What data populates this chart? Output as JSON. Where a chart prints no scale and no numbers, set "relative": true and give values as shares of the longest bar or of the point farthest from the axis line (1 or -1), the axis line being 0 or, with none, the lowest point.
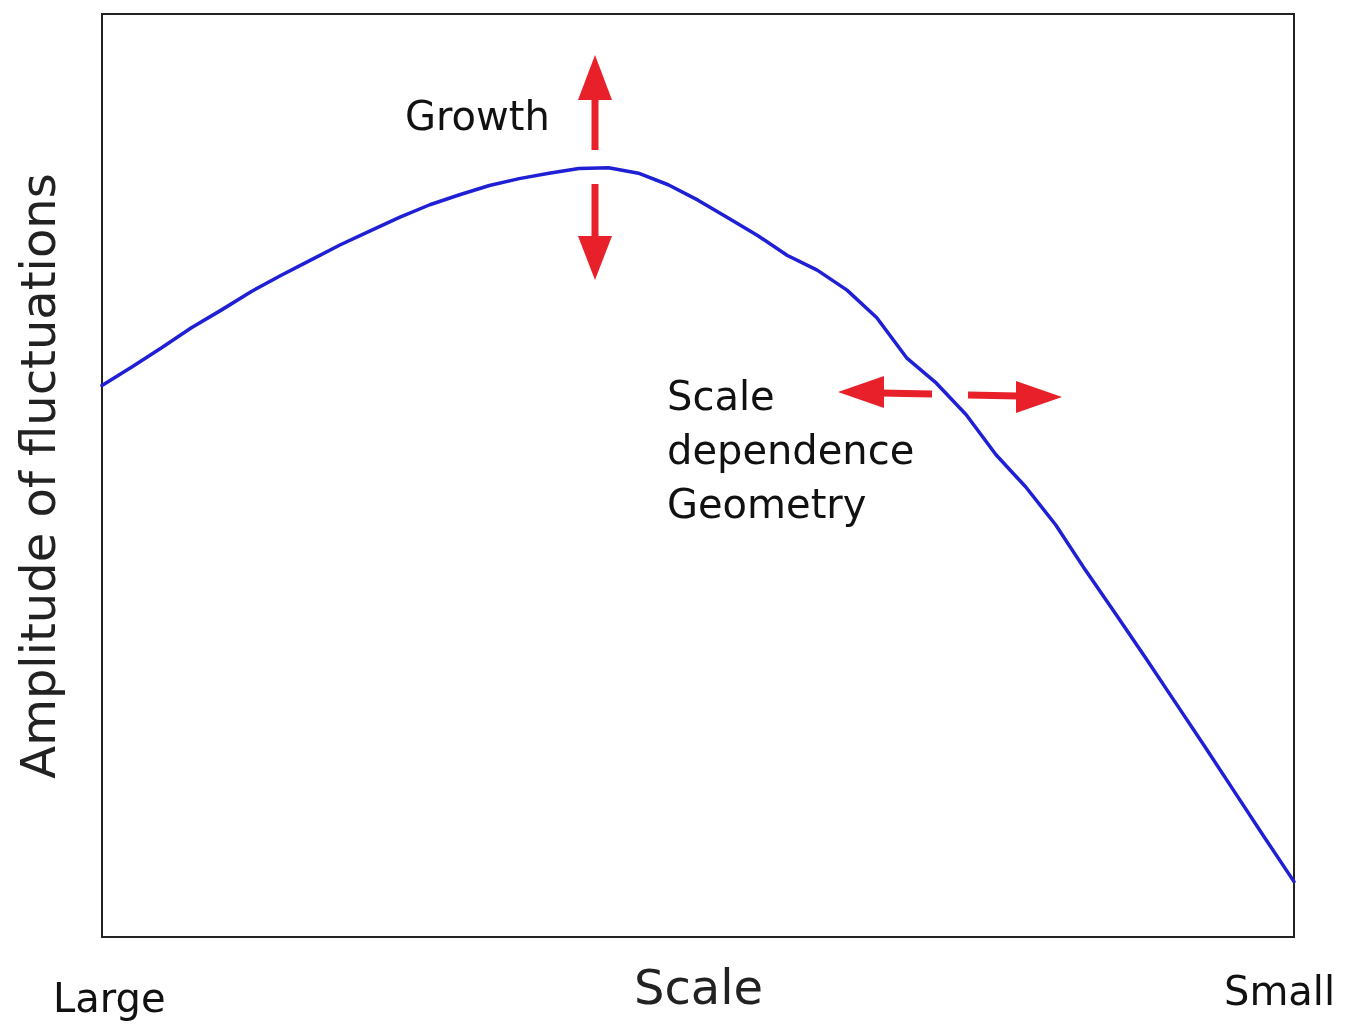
{
  "chart_data": {
    "type": "line",
    "relative": true,
    "xlabel": "Scale",
    "ylabel": "Amplitude of fluctuations",
    "tick_labels": false,
    "grid": false,
    "categories": [
      null,
      null,
      null,
      null,
      null,
      null,
      null,
      null,
      null,
      null,
      null,
      null,
      null,
      null,
      null,
      null,
      null,
      null,
      null,
      null,
      null,
      null,
      null,
      null,
      null,
      null,
      null,
      null,
      null,
      null,
      null,
      null,
      null,
      null,
      null,
      null,
      null,
      null,
      null,
      null,
      null
    ],
    "series": [
      {
        "color": "#1f1fd6",
        "values": [
          0.717,
          0.741,
          0.766,
          0.792,
          0.815,
          0.839,
          0.86,
          0.88,
          0.9,
          0.918,
          0.936,
          0.952,
          0.965,
          0.977,
          0.986,
          0.993,
          0.999,
          1,
          0.993,
          0.978,
          0.958,
          0.935,
          0.912,
          0.886,
          0.867,
          0.841,
          0.805,
          0.753,
          0.72,
          0.679,
          0.627,
          0.585,
          0.536,
          0.477,
          0.421,
          0.364,
          0.306,
          0.248,
          0.189,
          0.13,
          0.072
        ]
      }
    ],
    "annotations": [
      "Growth",
      "Scale\ndependence\nGeometry",
      "Large",
      "Small"
    ]
  }
}
